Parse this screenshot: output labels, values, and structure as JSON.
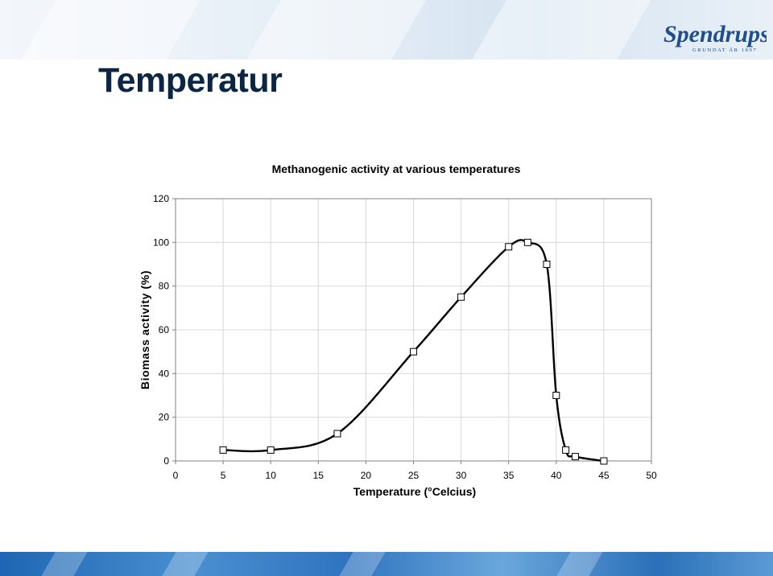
{
  "slide": {
    "title": "Temperatur",
    "logo": {
      "text": "Spendrups",
      "subtitle": "GRUNDAT ÅR 1897",
      "color": "#1f4e8c",
      "icon": "spendrups-logo"
    },
    "colors": {
      "top_band": "#e3ecf6",
      "bottom_band": "#2e73be",
      "title": "#0b2545"
    }
  },
  "chart_data": {
    "type": "line",
    "title": "Methanogenic activity at various temperatures",
    "xlabel": "Temperature (°Celcius)",
    "ylabel": "Biomass activity (%)",
    "xlim": [
      0,
      50
    ],
    "ylim": [
      0,
      120
    ],
    "x_ticks": [
      0,
      5,
      10,
      15,
      20,
      25,
      30,
      35,
      40,
      45,
      50
    ],
    "y_ticks": [
      0,
      20,
      40,
      60,
      80,
      100,
      120
    ],
    "grid": "vertical and horizontal light gray",
    "marker": "open-square",
    "line_style": "smoothed black",
    "series": [
      {
        "x": [
          5,
          10,
          17,
          25,
          30,
          35,
          37,
          39,
          40,
          41,
          42,
          45
        ],
        "values": [
          5,
          5,
          12.5,
          50,
          75,
          98,
          100,
          90,
          30,
          5,
          2,
          0
        ]
      }
    ]
  }
}
